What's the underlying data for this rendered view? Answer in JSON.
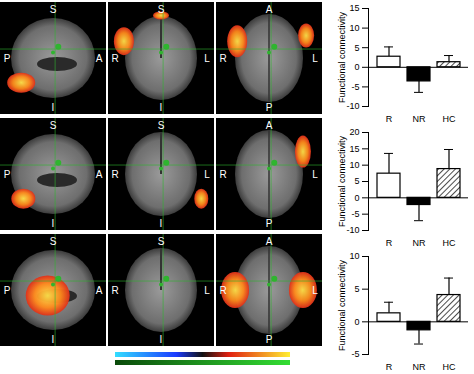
{
  "chart_data": [
    {
      "type": "bar",
      "categories": [
        "R",
        "NR",
        "HC"
      ],
      "values": [
        2.7,
        -3.6,
        1.3
      ],
      "errors": [
        2.5,
        2.8,
        1.7
      ],
      "colors": [
        "white",
        "black",
        "hatched"
      ],
      "y_label": "Functional connectivity",
      "ylim": [
        -10,
        15
      ],
      "yticks": [
        -10,
        -5,
        0,
        5,
        10,
        15
      ]
    },
    {
      "type": "bar",
      "categories": [
        "R",
        "NR",
        "HC"
      ],
      "values": [
        7.4,
        -2.2,
        8.8
      ],
      "errors": [
        6.2,
        4.8,
        6.0
      ],
      "colors": [
        "white",
        "black",
        "hatched"
      ],
      "y_label": "Functional connectivity",
      "ylim": [
        -10,
        20
      ],
      "yticks": [
        -10,
        -5,
        0,
        5,
        10,
        15,
        20
      ]
    },
    {
      "type": "bar",
      "categories": [
        "R",
        "NR",
        "HC"
      ],
      "values": [
        1.3,
        -1.3,
        4.1
      ],
      "errors": [
        1.7,
        2.1,
        2.6
      ],
      "colors": [
        "white",
        "black",
        "hatched"
      ],
      "y_label": "Functional connectivity",
      "ylim": [
        -5,
        10
      ],
      "yticks": [
        -5,
        0,
        5,
        10
      ]
    }
  ],
  "brain_figure": {
    "rows": [
      {
        "views": [
          {
            "top": "S",
            "bottom": "I",
            "left": "P",
            "right": "A"
          },
          {
            "top": "S",
            "bottom": "I",
            "left": "R",
            "right": "L"
          },
          {
            "top": "A",
            "bottom": "P",
            "left": "R",
            "right": "L"
          }
        ]
      },
      {
        "views": [
          {
            "top": "S",
            "bottom": "I",
            "left": "P",
            "right": "A"
          },
          {
            "top": "S",
            "bottom": "I",
            "left": "R",
            "right": "L"
          },
          {
            "top": "A",
            "bottom": "P",
            "left": "R",
            "right": "L"
          }
        ]
      },
      {
        "views": [
          {
            "top": "S",
            "bottom": "I",
            "left": "P",
            "right": "A"
          },
          {
            "top": "S",
            "bottom": "I",
            "left": "R",
            "right": "L"
          },
          {
            "top": "A",
            "bottom": "P",
            "left": "R",
            "right": "L"
          }
        ]
      }
    ]
  }
}
